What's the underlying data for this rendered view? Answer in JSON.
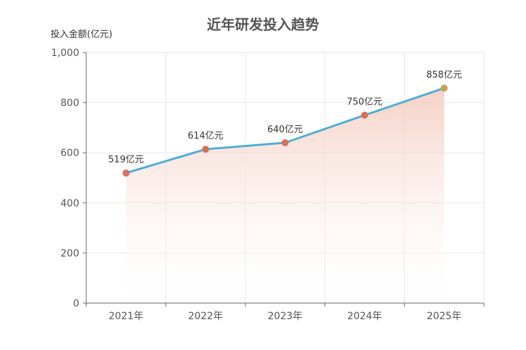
{
  "chart_data": {
    "type": "area",
    "title": "近年研发投入趋势",
    "ylabel": "投入金额(亿元)",
    "xlabel": "",
    "categories": [
      "2021年",
      "2022年",
      "2023年",
      "2024年",
      "2025年"
    ],
    "values": [
      519,
      614,
      640,
      750,
      858
    ],
    "data_labels": [
      "519亿元",
      "614亿元",
      "640亿元",
      "750亿元",
      "858亿元"
    ],
    "ylim": [
      0,
      1000
    ],
    "yticks": [
      0,
      200,
      400,
      600,
      800,
      1000
    ],
    "ytick_labels": [
      "0",
      "200",
      "400",
      "600",
      "800",
      "1,000"
    ],
    "grid": true,
    "legend": "none",
    "colors": {
      "line": "#4aaed6",
      "marker": "#d7705a",
      "marker_last": "#c6a55b",
      "area_top": "#f3c9bb",
      "area_bottom": "#ffffff",
      "grid": "#e6e6e6",
      "axis": "#666666"
    }
  }
}
